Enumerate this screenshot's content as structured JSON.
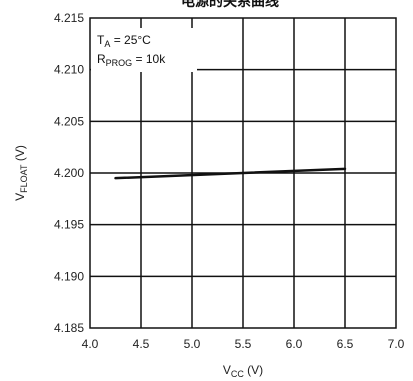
{
  "heading_text": "电源的关系曲线",
  "chart_data": {
    "type": "line",
    "x_axis": {
      "label_main": "V",
      "label_sub": "CC",
      "label_unit": "(V)",
      "range": [
        4.0,
        7.0
      ],
      "ticks": [
        4.0,
        4.5,
        5.0,
        5.5,
        6.0,
        6.5,
        7.0
      ],
      "tick_labels": [
        "4.0",
        "4.5",
        "5.0",
        "5.5",
        "6.0",
        "6.5",
        "7.0"
      ]
    },
    "y_axis": {
      "label_main": "V",
      "label_sub": "FLOAT",
      "label_unit": "(V)",
      "range": [
        4.185,
        4.215
      ],
      "ticks": [
        4.185,
        4.19,
        4.195,
        4.2,
        4.205,
        4.21,
        4.215
      ],
      "tick_labels": [
        "4.185",
        "4.190",
        "4.195",
        "4.200",
        "4.205",
        "4.210",
        "4.215"
      ]
    },
    "grid": true,
    "legend": "none",
    "annotation": {
      "line1_main": "T",
      "line1_sub": "A",
      "line1_rest": " = 25°C",
      "line2_main": "R",
      "line2_sub": "PROG",
      "line2_rest": " = 10k"
    },
    "series": [
      {
        "color": "#111111",
        "x": [
          4.25,
          6.5
        ],
        "y": [
          4.1995,
          4.2004
        ]
      }
    ]
  }
}
